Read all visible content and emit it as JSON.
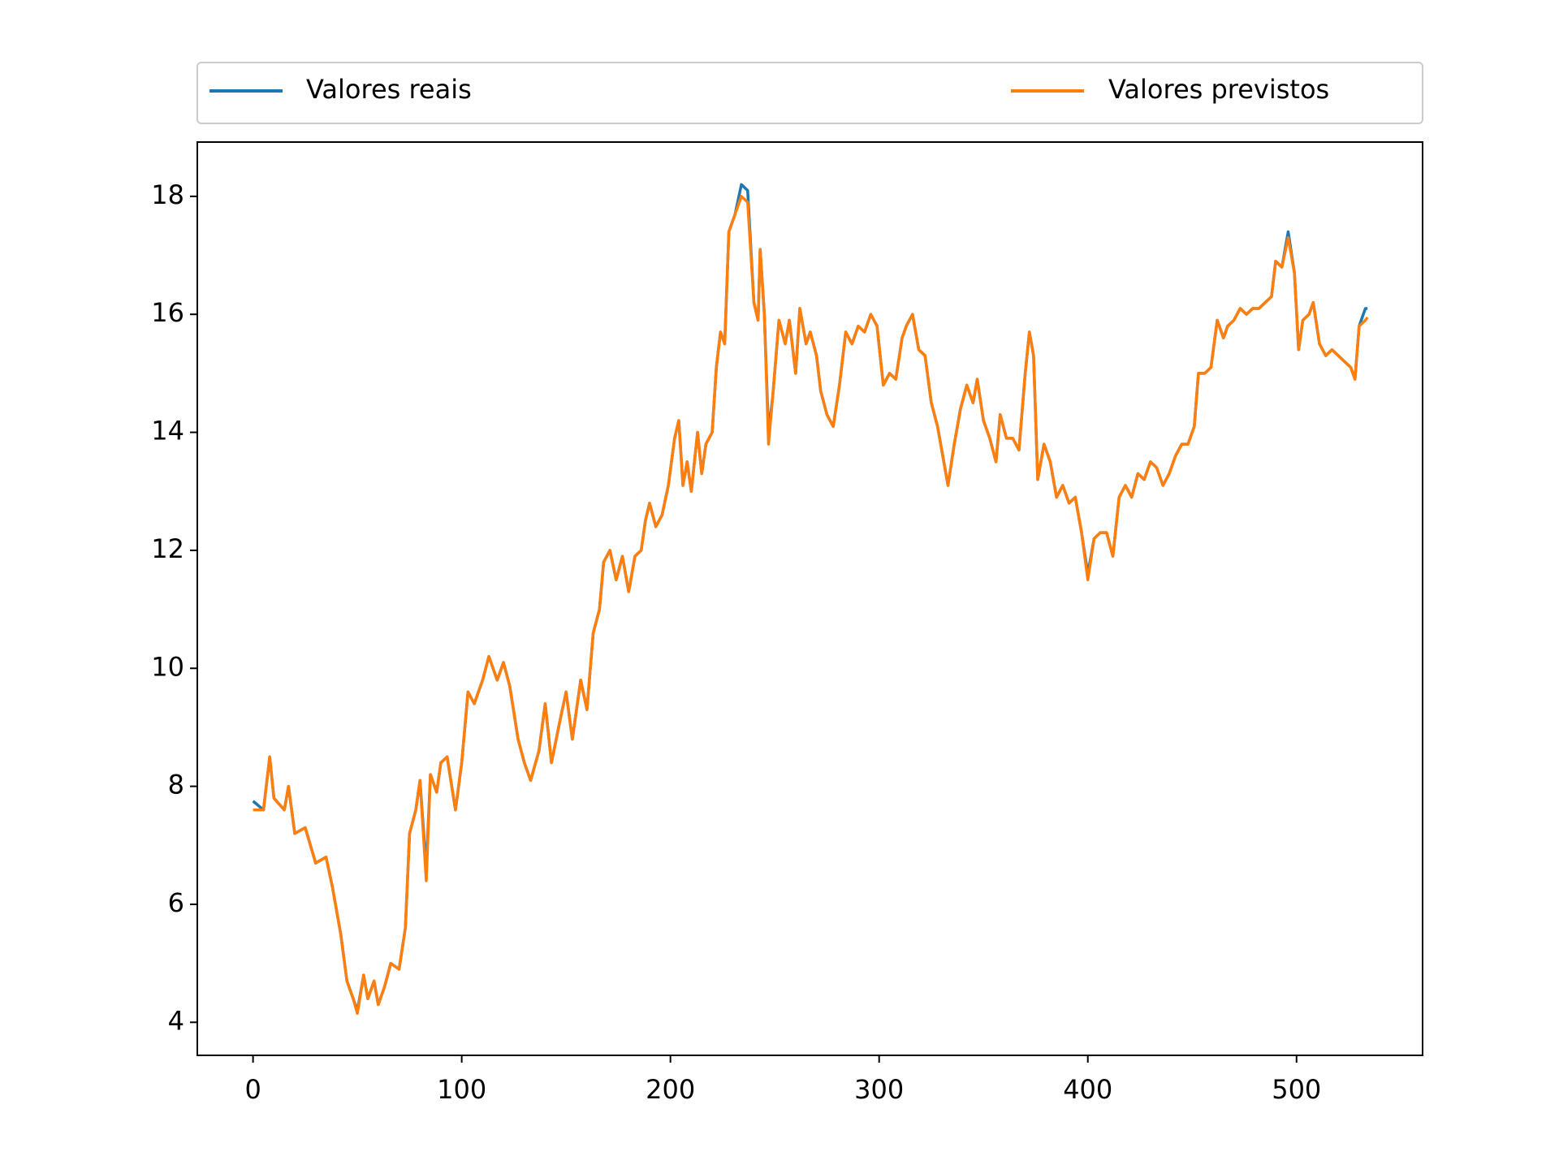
{
  "chart_data": {
    "type": "line",
    "x": [
      0,
      5,
      8,
      10,
      15,
      17,
      20,
      25,
      30,
      35,
      38,
      42,
      45,
      48,
      50,
      53,
      55,
      58,
      60,
      63,
      66,
      70,
      73,
      75,
      78,
      80,
      83,
      85,
      88,
      90,
      93,
      97,
      100,
      103,
      106,
      110,
      113,
      117,
      120,
      123,
      127,
      130,
      133,
      137,
      140,
      143,
      147,
      150,
      153,
      157,
      160,
      163,
      166,
      168,
      171,
      174,
      177,
      180,
      183,
      186,
      188,
      190,
      193,
      196,
      199,
      202,
      204,
      206,
      208,
      210,
      213,
      215,
      217,
      220,
      222,
      224,
      226,
      228,
      231,
      234,
      237,
      240,
      242,
      243,
      245,
      247,
      249,
      252,
      255,
      257,
      260,
      262,
      265,
      267,
      270,
      272,
      275,
      278,
      281,
      284,
      287,
      290,
      293,
      296,
      299,
      302,
      305,
      308,
      311,
      313,
      316,
      319,
      322,
      325,
      328,
      331,
      333,
      336,
      339,
      342,
      345,
      347,
      350,
      353,
      356,
      358,
      361,
      364,
      367,
      370,
      372,
      374,
      376,
      379,
      382,
      385,
      388,
      391,
      394,
      397,
      400,
      403,
      406,
      409,
      412,
      415,
      418,
      421,
      424,
      427,
      430,
      433,
      436,
      439,
      442,
      445,
      448,
      451,
      453,
      456,
      459,
      462,
      465,
      467,
      470,
      473,
      476,
      479,
      482,
      485,
      488,
      490,
      493,
      496,
      499,
      501,
      503,
      506,
      508,
      511,
      514,
      517,
      520,
      523,
      526,
      528,
      530,
      533,
      534
    ],
    "series": [
      {
        "name": "Valores reais",
        "color": "#1f77b4",
        "values": [
          7.75,
          7.6,
          8.5,
          7.8,
          7.6,
          8.0,
          7.2,
          7.3,
          6.7,
          6.8,
          6.3,
          5.5,
          4.7,
          4.4,
          4.2,
          4.8,
          4.4,
          4.7,
          4.3,
          4.6,
          5.0,
          4.9,
          5.6,
          7.2,
          7.6,
          8.1,
          6.6,
          8.2,
          7.9,
          8.4,
          8.5,
          7.6,
          8.4,
          9.6,
          9.4,
          9.8,
          10.2,
          9.8,
          10.1,
          9.7,
          8.8,
          8.4,
          8.1,
          8.6,
          9.4,
          8.4,
          9.1,
          9.6,
          8.8,
          9.8,
          9.3,
          10.6,
          11.0,
          11.8,
          12.0,
          11.5,
          11.9,
          11.3,
          11.9,
          12.0,
          12.5,
          12.8,
          12.4,
          12.6,
          13.1,
          13.9,
          14.2,
          13.1,
          13.5,
          13.0,
          14.0,
          13.3,
          13.8,
          14.0,
          15.1,
          15.7,
          15.5,
          17.4,
          17.7,
          18.2,
          18.1,
          16.2,
          15.9,
          17.1,
          16.0,
          14.0,
          14.6,
          15.9,
          15.5,
          15.9,
          15.0,
          16.1,
          15.5,
          15.7,
          15.3,
          14.7,
          14.3,
          14.1,
          14.8,
          15.7,
          15.5,
          15.8,
          15.7,
          16.0,
          15.8,
          14.8,
          15.0,
          14.9,
          15.6,
          15.8,
          16.0,
          15.4,
          15.3,
          14.5,
          14.1,
          13.5,
          13.1,
          13.8,
          14.4,
          14.8,
          14.5,
          14.9,
          14.2,
          13.9,
          13.5,
          14.3,
          13.9,
          13.9,
          13.7,
          15.0,
          15.7,
          15.3,
          13.2,
          13.8,
          13.5,
          12.9,
          13.1,
          12.8,
          12.9,
          12.3,
          11.6,
          12.2,
          12.3,
          12.3,
          11.9,
          12.9,
          13.1,
          12.9,
          13.3,
          13.2,
          13.5,
          13.4,
          13.1,
          13.3,
          13.6,
          13.8,
          13.8,
          14.1,
          15.0,
          15.0,
          15.1,
          15.9,
          15.6,
          15.8,
          15.9,
          16.1,
          16.0,
          16.1,
          16.1,
          16.2,
          16.3,
          16.9,
          16.8,
          17.4,
          16.7,
          15.4,
          15.9,
          16.0,
          16.2,
          15.5,
          15.3,
          15.4,
          15.3,
          15.2,
          15.1,
          14.9,
          15.8,
          16.1,
          16.1
        ]
      },
      {
        "name": "Valores previstos",
        "color": "#ff7f0e",
        "values": [
          7.6,
          7.6,
          8.5,
          7.8,
          7.6,
          8.0,
          7.2,
          7.3,
          6.7,
          6.8,
          6.3,
          5.5,
          4.7,
          4.4,
          4.15,
          4.8,
          4.4,
          4.7,
          4.3,
          4.6,
          5.0,
          4.9,
          5.6,
          7.2,
          7.6,
          8.1,
          6.4,
          8.2,
          7.9,
          8.4,
          8.5,
          7.6,
          8.4,
          9.6,
          9.4,
          9.8,
          10.2,
          9.8,
          10.1,
          9.7,
          8.8,
          8.4,
          8.1,
          8.6,
          9.4,
          8.4,
          9.1,
          9.6,
          8.8,
          9.8,
          9.3,
          10.6,
          11.0,
          11.8,
          12.0,
          11.5,
          11.9,
          11.3,
          11.9,
          12.0,
          12.5,
          12.8,
          12.4,
          12.6,
          13.1,
          13.9,
          14.2,
          13.1,
          13.5,
          13.0,
          14.0,
          13.3,
          13.8,
          14.0,
          15.1,
          15.7,
          15.5,
          17.4,
          17.7,
          18.0,
          17.9,
          16.2,
          15.9,
          17.1,
          16.0,
          13.8,
          14.6,
          15.9,
          15.5,
          15.9,
          15.0,
          16.1,
          15.5,
          15.7,
          15.3,
          14.7,
          14.3,
          14.1,
          14.8,
          15.7,
          15.5,
          15.8,
          15.7,
          16.0,
          15.8,
          14.8,
          15.0,
          14.9,
          15.6,
          15.8,
          16.0,
          15.4,
          15.3,
          14.5,
          14.1,
          13.5,
          13.1,
          13.8,
          14.4,
          14.8,
          14.5,
          14.9,
          14.2,
          13.9,
          13.5,
          14.3,
          13.9,
          13.9,
          13.7,
          15.0,
          15.7,
          15.3,
          13.2,
          13.8,
          13.5,
          12.9,
          13.1,
          12.8,
          12.9,
          12.3,
          11.5,
          12.2,
          12.3,
          12.3,
          11.9,
          12.9,
          13.1,
          12.9,
          13.3,
          13.2,
          13.5,
          13.4,
          13.1,
          13.3,
          13.6,
          13.8,
          13.8,
          14.1,
          15.0,
          15.0,
          15.1,
          15.9,
          15.6,
          15.8,
          15.9,
          16.1,
          16.0,
          16.1,
          16.1,
          16.2,
          16.3,
          16.9,
          16.8,
          17.3,
          16.7,
          15.4,
          15.9,
          16.0,
          16.2,
          15.5,
          15.3,
          15.4,
          15.3,
          15.2,
          15.1,
          14.9,
          15.8,
          15.9,
          15.95
        ]
      }
    ],
    "xlim": [
      -26.7,
      560.4
    ],
    "ylim": [
      3.44,
      18.92
    ],
    "xticks": [
      0,
      100,
      200,
      300,
      400,
      500
    ],
    "yticks": [
      4,
      6,
      8,
      10,
      12,
      14,
      16,
      18
    ]
  }
}
